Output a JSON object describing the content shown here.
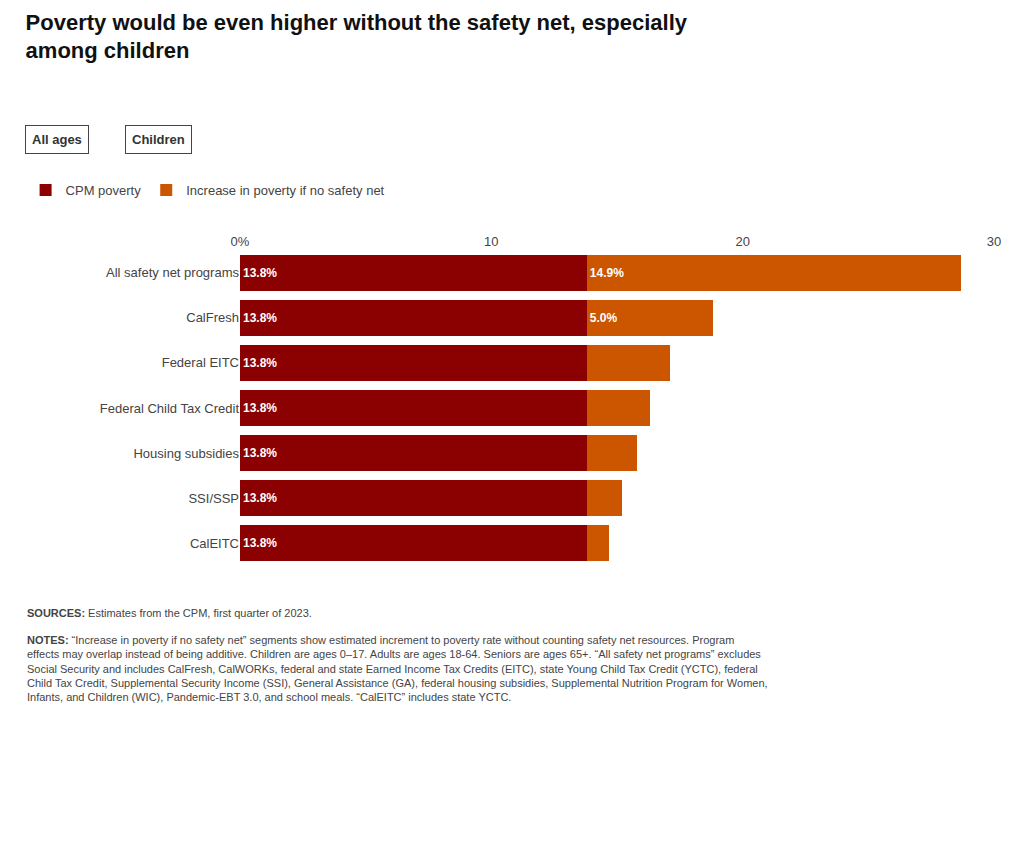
{
  "chart_data": {
    "type": "bar",
    "orientation": "horizontal",
    "stacked": true,
    "title": "Poverty would be even higher without the safety net, especially among children",
    "categories": [
      "All safety net programs",
      "CalFresh",
      "Federal EITC",
      "Federal Child Tax Credit",
      "Housing subsidies",
      "SSI/SSP",
      "CalEITC"
    ],
    "series": [
      {
        "name": "CPM poverty",
        "color": "#8b0000",
        "values": [
          13.8,
          13.8,
          13.8,
          13.8,
          13.8,
          13.8,
          13.8
        ],
        "value_labels": [
          "13.8%",
          "13.8%",
          "13.8%",
          "13.8%",
          "13.8%",
          "13.8%",
          "13.8%"
        ]
      },
      {
        "name": "Increase in poverty if no safety net",
        "color": "#cc5500",
        "values": [
          14.9,
          5.0,
          3.3,
          2.5,
          2.0,
          1.4,
          0.9
        ],
        "value_labels": [
          "14.9%",
          "5.0%",
          null,
          null,
          null,
          null,
          null
        ]
      }
    ],
    "data_labels": true,
    "xlim": [
      0,
      30
    ],
    "xticks": [
      {
        "value": 0,
        "label": "0%"
      },
      10,
      20,
      30
    ],
    "grid": false,
    "legend": "top left",
    "annotations": [
      "All ages",
      "Children",
      "SOURCES: Estimates from the CPM, first quarter of 2023.",
      "NOTES: “Increase in poverty if no safety net” segments show estimated increment to poverty rate without counting safety net resources. Program effects may overlap instead of being additive. Children are ages 0–17. Adults are ages 18-64. Seniors are ages 65+. “All safety net programs” excludes Social Security and includes CalFresh, CalWORKs, federal and state Earned Income Tax Credits (EITC), state Young Child Tax Credit (YCTC), federal Child Tax Credit, Supplemental Security Income (SSI), General Assistance (GA), federal housing subsidies, Supplemental Nutrition Program for Women, Infants, and Children (WIC), Pandemic-EBT 3.0, and school meals. “CalEITC” includes state YCTC."
    ]
  }
}
